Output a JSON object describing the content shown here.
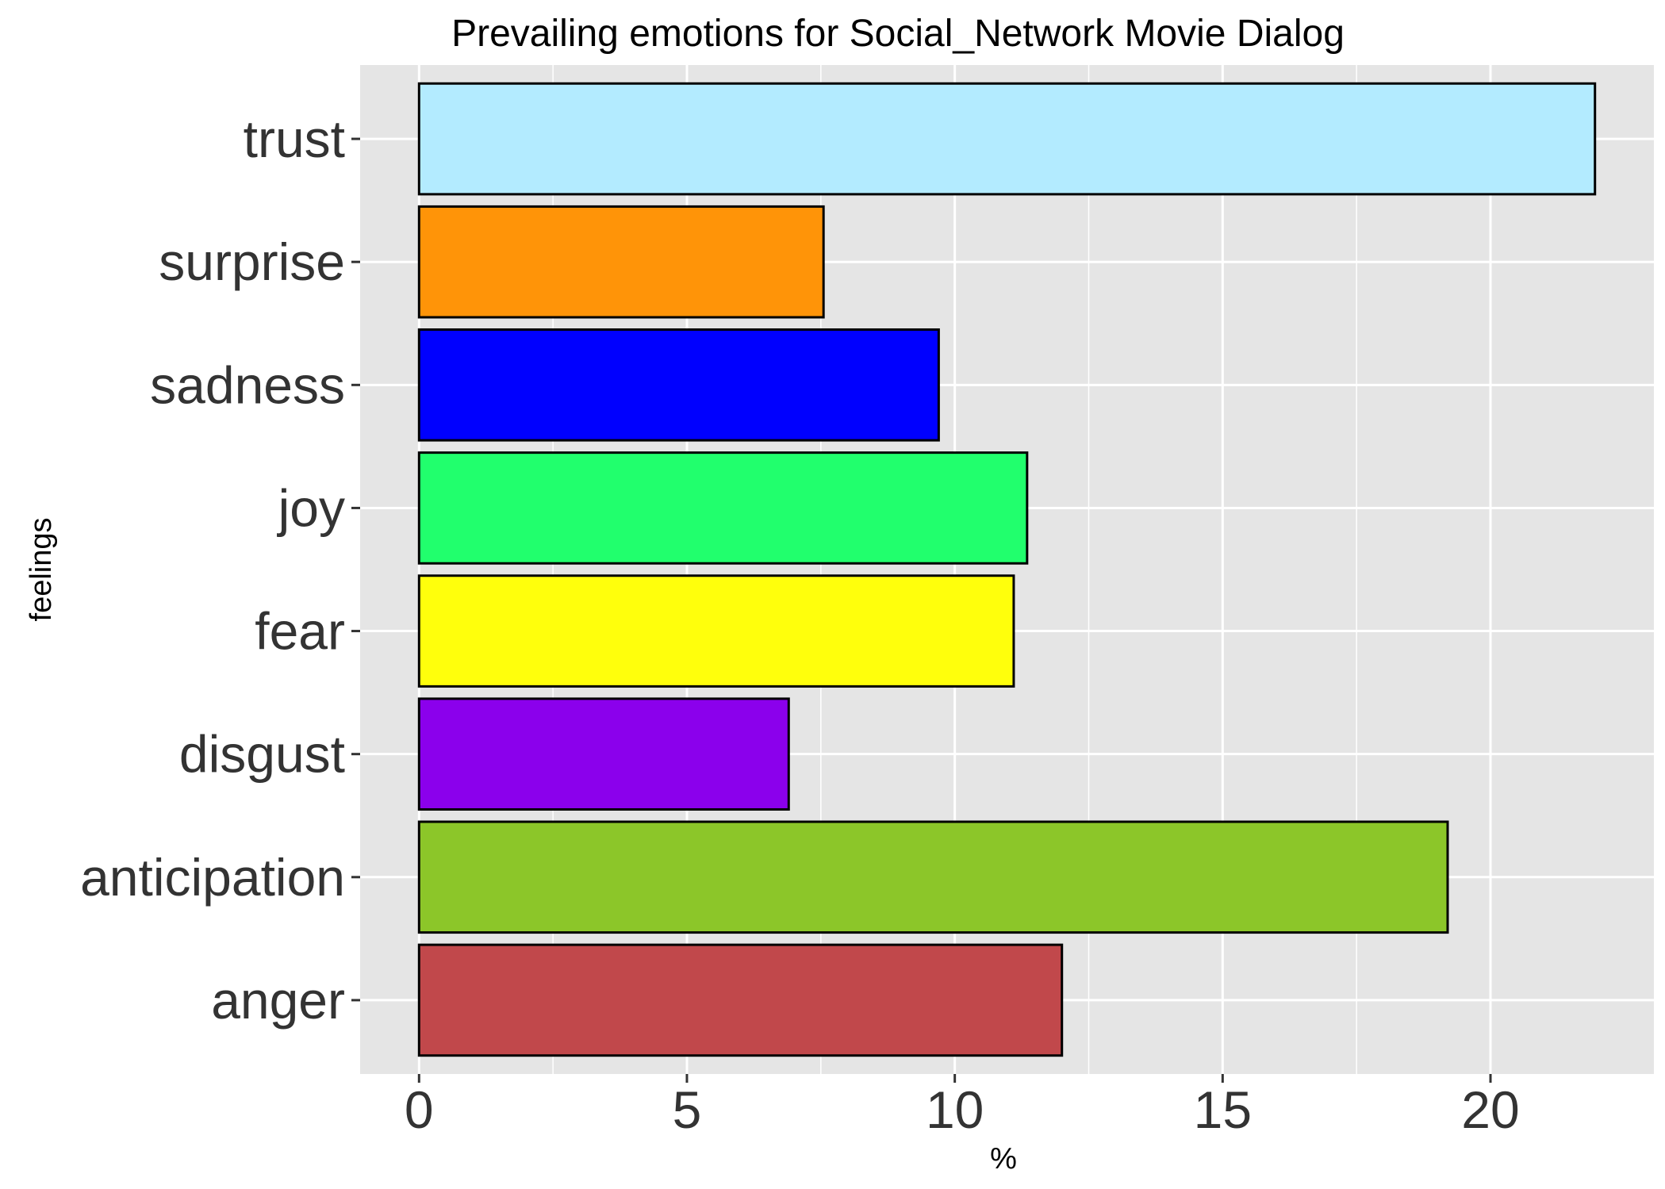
{
  "chart_data": {
    "type": "bar",
    "orientation": "horizontal",
    "title": "Prevailing emotions for Social_Network Movie Dialog",
    "xlabel": "%",
    "ylabel": "feelings",
    "categories": [
      "anger",
      "anticipation",
      "disgust",
      "fear",
      "joy",
      "sadness",
      "surprise",
      "trust"
    ],
    "values": [
      12.0,
      19.2,
      6.9,
      11.1,
      11.35,
      9.7,
      7.55,
      21.95
    ],
    "bar_colors": [
      "#C1484B",
      "#8CC629",
      "#8B00EC",
      "#FFFF0C",
      "#21FF6D",
      "#0000FF",
      "#FF9408",
      "#B3EBFF"
    ],
    "xticks": [
      0,
      5,
      10,
      15,
      20
    ],
    "xtick_labels": [
      "0",
      "5",
      "10",
      "15",
      "20"
    ],
    "xlim": [
      -1.1,
      23.05
    ],
    "grid": true,
    "panel_color": "#E5E5E5",
    "bar_outline_color": "#000000"
  }
}
